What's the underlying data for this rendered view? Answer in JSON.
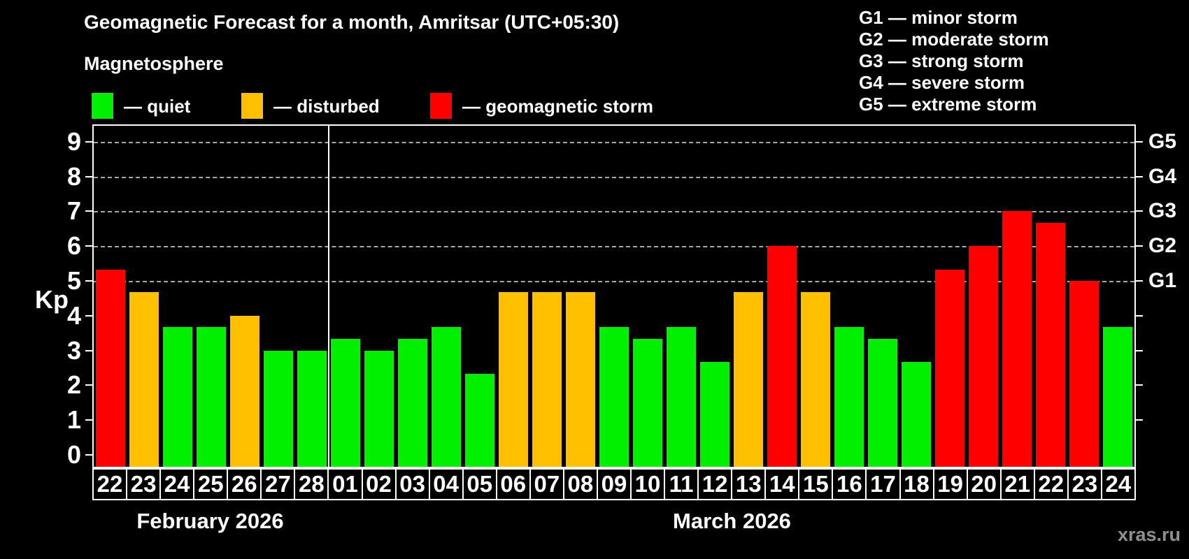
{
  "title": "Geomagnetic Forecast for a month, Amritsar (UTC+05:30)",
  "subtitle": "Magnetosphere",
  "legend": {
    "items": [
      {
        "label": "— quiet",
        "status": "quiet",
        "color": "#00F000"
      },
      {
        "label": "— disturbed",
        "status": "disturbed",
        "color": "#FFC000"
      },
      {
        "label": "— geomagnetic storm",
        "status": "storm",
        "color": "#FF0000"
      }
    ]
  },
  "g_legend": {
    "items": [
      {
        "label": "G1 — minor storm"
      },
      {
        "label": "G2 — moderate storm"
      },
      {
        "label": "G3 — strong storm"
      },
      {
        "label": "G4 — severe storm"
      },
      {
        "label": "G5 — extreme storm"
      }
    ]
  },
  "axes": {
    "y_label": "Kp"
  },
  "months": [
    {
      "label": "February 2026",
      "days": 7
    },
    {
      "label": "March 2026",
      "days": 24
    }
  ],
  "watermark": "xras.ru",
  "chart_data": {
    "type": "bar",
    "title": "Geomagnetic Forecast for a month, Amritsar (UTC+05:30)",
    "xlabel": "",
    "ylabel": "Kp",
    "ylim": [
      0,
      9
    ],
    "y_ticks": [
      0,
      1,
      2,
      3,
      4,
      5,
      6,
      7,
      8,
      9
    ],
    "gridlines_at_kp": [
      5,
      6,
      7,
      8,
      9
    ],
    "grid": "dashed horizontal at storm levels only",
    "legend_position": "top",
    "right_axis": [
      {
        "label": "G1",
        "kp": 5
      },
      {
        "label": "G2",
        "kp": 6
      },
      {
        "label": "G3",
        "kp": 7
      },
      {
        "label": "G4",
        "kp": 8
      },
      {
        "label": "G5",
        "kp": 9
      }
    ],
    "status_colors": {
      "quiet": "#00F000",
      "disturbed": "#FFC000",
      "storm": "#FF0000"
    },
    "series": [
      {
        "month": "February 2026",
        "date": "22",
        "kp": 5.33,
        "status": "storm"
      },
      {
        "month": "February 2026",
        "date": "23",
        "kp": 4.67,
        "status": "disturbed"
      },
      {
        "month": "February 2026",
        "date": "24",
        "kp": 3.67,
        "status": "quiet"
      },
      {
        "month": "February 2026",
        "date": "25",
        "kp": 3.67,
        "status": "quiet"
      },
      {
        "month": "February 2026",
        "date": "26",
        "kp": 4.0,
        "status": "disturbed"
      },
      {
        "month": "February 2026",
        "date": "27",
        "kp": 3.0,
        "status": "quiet"
      },
      {
        "month": "February 2026",
        "date": "28",
        "kp": 3.0,
        "status": "quiet"
      },
      {
        "month": "March 2026",
        "date": "01",
        "kp": 3.33,
        "status": "quiet"
      },
      {
        "month": "March 2026",
        "date": "02",
        "kp": 3.0,
        "status": "quiet"
      },
      {
        "month": "March 2026",
        "date": "03",
        "kp": 3.33,
        "status": "quiet"
      },
      {
        "month": "March 2026",
        "date": "04",
        "kp": 3.67,
        "status": "quiet"
      },
      {
        "month": "March 2026",
        "date": "05",
        "kp": 2.33,
        "status": "quiet"
      },
      {
        "month": "March 2026",
        "date": "06",
        "kp": 4.67,
        "status": "disturbed"
      },
      {
        "month": "March 2026",
        "date": "07",
        "kp": 4.67,
        "status": "disturbed"
      },
      {
        "month": "March 2026",
        "date": "08",
        "kp": 4.67,
        "status": "disturbed"
      },
      {
        "month": "March 2026",
        "date": "09",
        "kp": 3.67,
        "status": "quiet"
      },
      {
        "month": "March 2026",
        "date": "10",
        "kp": 3.33,
        "status": "quiet"
      },
      {
        "month": "March 2026",
        "date": "11",
        "kp": 3.67,
        "status": "quiet"
      },
      {
        "month": "March 2026",
        "date": "12",
        "kp": 2.67,
        "status": "quiet"
      },
      {
        "month": "March 2026",
        "date": "13",
        "kp": 4.67,
        "status": "disturbed"
      },
      {
        "month": "March 2026",
        "date": "14",
        "kp": 6.0,
        "status": "storm"
      },
      {
        "month": "March 2026",
        "date": "15",
        "kp": 4.67,
        "status": "disturbed"
      },
      {
        "month": "March 2026",
        "date": "16",
        "kp": 3.67,
        "status": "quiet"
      },
      {
        "month": "March 2026",
        "date": "17",
        "kp": 3.33,
        "status": "quiet"
      },
      {
        "month": "March 2026",
        "date": "18",
        "kp": 2.67,
        "status": "quiet"
      },
      {
        "month": "March 2026",
        "date": "19",
        "kp": 5.33,
        "status": "storm"
      },
      {
        "month": "March 2026",
        "date": "20",
        "kp": 6.0,
        "status": "storm"
      },
      {
        "month": "March 2026",
        "date": "21",
        "kp": 7.0,
        "status": "storm"
      },
      {
        "month": "March 2026",
        "date": "22",
        "kp": 6.67,
        "status": "storm"
      },
      {
        "month": "March 2026",
        "date": "23",
        "kp": 5.0,
        "status": "storm"
      },
      {
        "month": "March 2026",
        "date": "24",
        "kp": 3.67,
        "status": "quiet"
      }
    ]
  }
}
